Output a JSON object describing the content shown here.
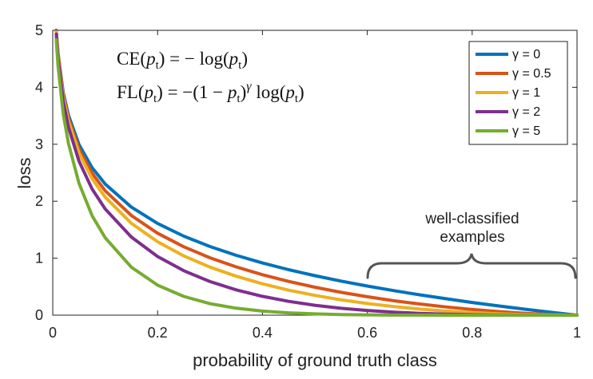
{
  "chart_data": {
    "type": "line",
    "title": "",
    "xlabel": "probability of ground truth class",
    "ylabel": "loss",
    "xlim": [
      0,
      1
    ],
    "ylim": [
      0,
      5
    ],
    "xticks": [
      0,
      0.2,
      0.4,
      0.6,
      0.8,
      1
    ],
    "xtick_labels": [
      "0",
      "0.2",
      "0.4",
      "0.6",
      "0.8",
      "1"
    ],
    "yticks": [
      0,
      1,
      2,
      3,
      4,
      5
    ],
    "ytick_labels": [
      "0",
      "1",
      "2",
      "3",
      "4",
      "5"
    ],
    "grid": false,
    "legend_position": "top-right",
    "x": [
      0.0067,
      0.01,
      0.02,
      0.03,
      0.05,
      0.075,
      0.1,
      0.15,
      0.2,
      0.25,
      0.3,
      0.35,
      0.4,
      0.45,
      0.5,
      0.55,
      0.6,
      0.65,
      0.7,
      0.75,
      0.8,
      0.85,
      0.9,
      0.95,
      1.0
    ],
    "series": [
      {
        "name": "γ = 0",
        "color": "#0072BD",
        "values": [
          5.0,
          4.605,
          3.912,
          3.507,
          2.996,
          2.59,
          2.303,
          1.897,
          1.609,
          1.386,
          1.204,
          1.05,
          0.916,
          0.799,
          0.693,
          0.598,
          0.511,
          0.431,
          0.357,
          0.288,
          0.223,
          0.163,
          0.105,
          0.051,
          0.0
        ]
      },
      {
        "name": "γ = 0.5",
        "color": "#D95319",
        "values": [
          4.983,
          4.582,
          3.873,
          3.454,
          2.92,
          2.494,
          2.184,
          1.749,
          1.439,
          1.2,
          1.007,
          0.847,
          0.71,
          0.592,
          0.49,
          0.401,
          0.323,
          0.254,
          0.196,
          0.144,
          0.1,
          0.063,
          0.033,
          0.011,
          0.0
        ]
      },
      {
        "name": "γ = 1",
        "color": "#EDB120",
        "values": [
          4.966,
          4.559,
          3.834,
          3.401,
          2.846,
          2.396,
          2.072,
          1.612,
          1.288,
          1.04,
          0.843,
          0.683,
          0.55,
          0.439,
          0.347,
          0.269,
          0.204,
          0.151,
          0.107,
          0.072,
          0.045,
          0.024,
          0.011,
          0.003,
          0.0
        ]
      },
      {
        "name": "γ = 2",
        "color": "#7E2F8E",
        "values": [
          4.933,
          4.513,
          3.757,
          3.299,
          2.704,
          2.216,
          1.865,
          1.371,
          1.03,
          0.78,
          0.59,
          0.444,
          0.33,
          0.242,
          0.173,
          0.121,
          0.082,
          0.053,
          0.032,
          0.018,
          0.009,
          0.004,
          0.001,
          0.0001,
          0.0
        ]
      },
      {
        "name": "γ = 5",
        "color": "#77AC30",
        "values": [
          4.834,
          4.38,
          3.534,
          3.012,
          2.318,
          1.747,
          1.36,
          0.842,
          0.527,
          0.329,
          0.202,
          0.122,
          0.071,
          0.04,
          0.022,
          0.011,
          0.005,
          0.002,
          0.0009,
          0.0003,
          0.0001,
          0.0,
          0.0,
          0.0,
          0.0
        ]
      }
    ],
    "equations": [
      "CE(p_t) = − log(p_t)",
      "FL(p_t) = −(1 − p_t)^γ log(p_t)"
    ],
    "annotation": [
      "well-classified",
      "examples"
    ]
  }
}
